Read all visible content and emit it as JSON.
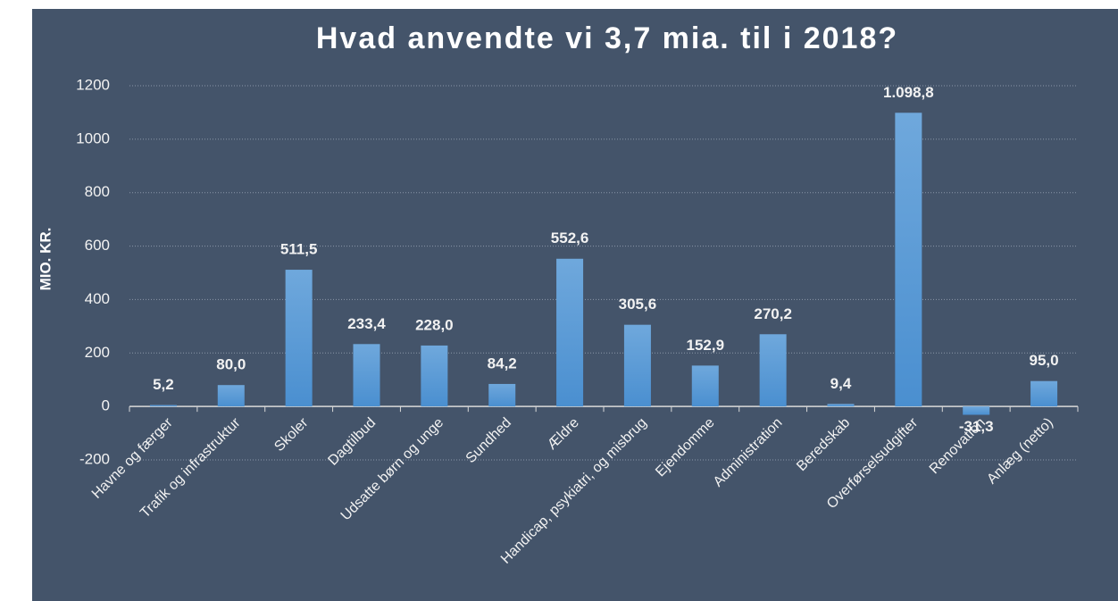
{
  "chart_data": {
    "type": "bar",
    "title": "Hvad anvendte vi 3,7 mia. til i 2018?",
    "y_label": "MIO. KR.",
    "categories": [
      "Havne og færger",
      "Trafik og infrastruktur",
      "Skoler",
      "Dagtilbud",
      "Udsatte børn og unge",
      "Sundhed",
      "Ældre",
      "Handicap, psykiatri, og misbrug",
      "Ejendomme",
      "Administration",
      "Beredskab",
      "Overførselsudgifter",
      "Renovation",
      "Anlæg (netto)"
    ],
    "values": [
      5.2,
      80.0,
      511.5,
      233.4,
      228.0,
      84.2,
      552.6,
      305.6,
      152.9,
      270.2,
      9.4,
      1098.8,
      -31.3,
      95.0
    ],
    "value_labels": [
      "5,2",
      "80,0",
      "511,5",
      "233,4",
      "228,0",
      "84,2",
      "552,6",
      "305,6",
      "152,9",
      "270,2",
      "9,4",
      "1.098,8",
      "-31,3",
      "95,0"
    ],
    "color": "#5b9bd5",
    "ylim": [
      -200,
      1200
    ],
    "yticks": [
      -200,
      0,
      200,
      400,
      600,
      800,
      1000,
      1200
    ],
    "grid": true
  }
}
